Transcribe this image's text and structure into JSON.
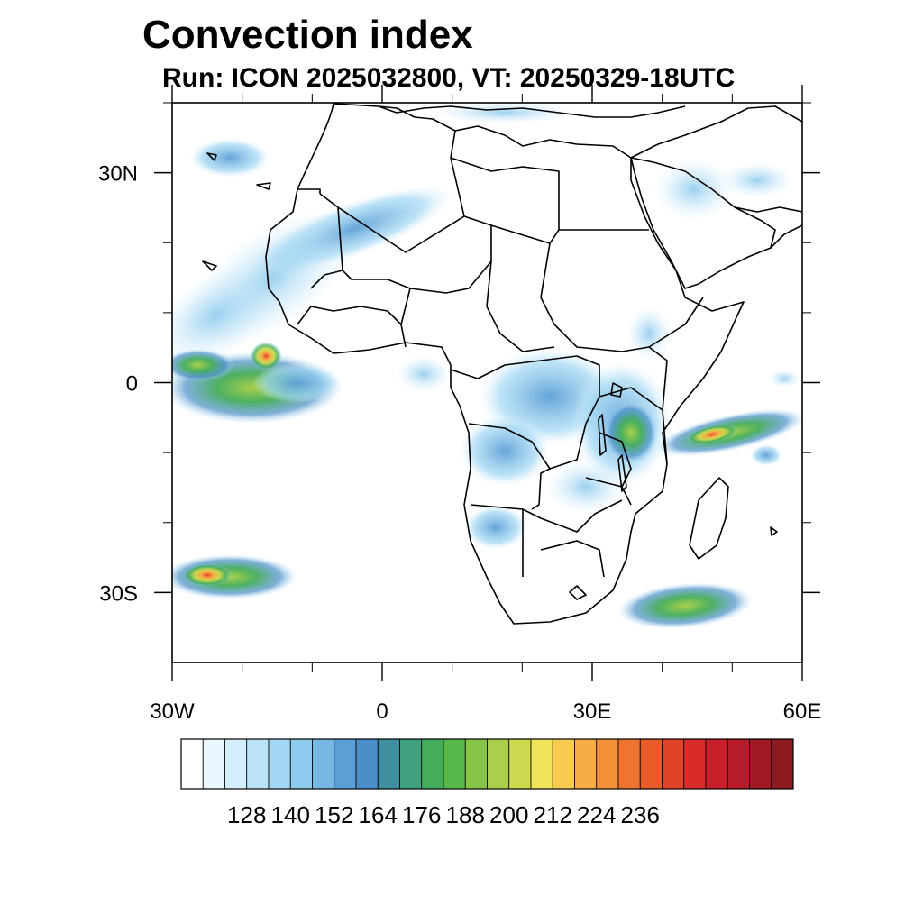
{
  "title": "Convection index",
  "subtitle": "Run: ICON 2025032800,  VT: 20250329-18UTC",
  "map": {
    "lon_range": [
      -30,
      60
    ],
    "lat_range": [
      -40,
      40
    ],
    "lon_ticks": [
      {
        "value": -30,
        "label": "30W"
      },
      {
        "value": 0,
        "label": "0"
      },
      {
        "value": 30,
        "label": "30E"
      },
      {
        "value": 60,
        "label": "60E"
      }
    ],
    "lat_ticks": [
      {
        "value": 30,
        "label": "30N"
      },
      {
        "value": 0,
        "label": "0"
      },
      {
        "value": -30,
        "label": "30S"
      }
    ],
    "minor_lon_step": 10,
    "minor_lat_step": 10,
    "coastline_color": "#000000"
  },
  "colorbar": {
    "colors": [
      "#ffffff",
      "#eaf6fd",
      "#d2edfb",
      "#bbe4f9",
      "#a2d8f4",
      "#8ecbee",
      "#76b7e4",
      "#5b9fd6",
      "#4a8fc9",
      "#3f8fa0",
      "#3f9f7e",
      "#44ad59",
      "#55b848",
      "#86c448",
      "#a9cf4b",
      "#cdd94f",
      "#eee55a",
      "#f8cb50",
      "#f6ad44",
      "#f59138",
      "#ee742f",
      "#e85b29",
      "#e14328",
      "#d92b2a",
      "#c91f2b",
      "#b61c2a",
      "#a01a26",
      "#8a1a20"
    ],
    "labels": [
      "128",
      "140",
      "152",
      "164",
      "176",
      "188",
      "200",
      "212",
      "224",
      "236"
    ],
    "label_every": 2
  }
}
